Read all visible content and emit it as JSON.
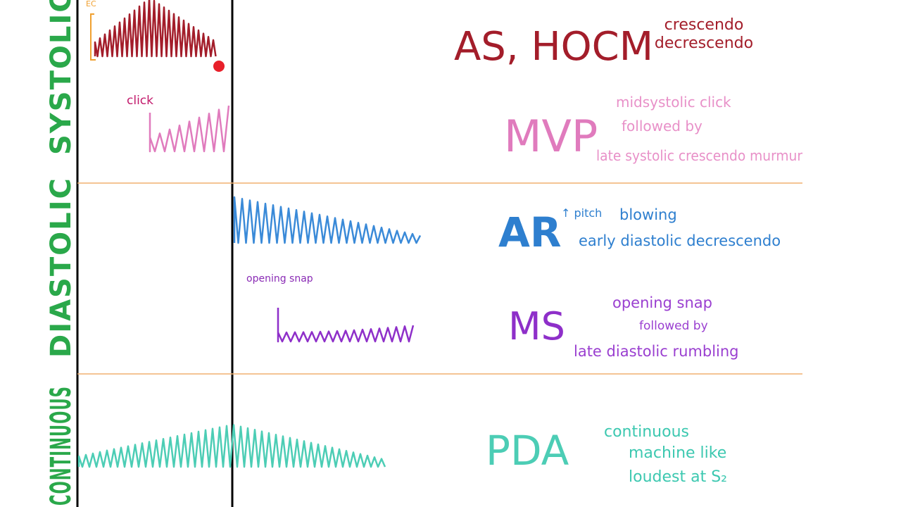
{
  "sections": [
    {
      "label": "SYSTOLIC",
      "murmurs": [
        {
          "name": "AS, HOCM",
          "annotation": "EC",
          "description": [
            "crescendo",
            "decrescendo"
          ]
        },
        {
          "name": "MVP",
          "annotation": "click",
          "description": [
            "midsystolic click",
            "followed by",
            "late systolic crescendo murmur"
          ]
        }
      ]
    },
    {
      "label": "DIASTOLIC",
      "murmurs": [
        {
          "name": "AR",
          "annotation": "↑ pitch",
          "description": [
            "blowing",
            "early diastolic decrescendo"
          ]
        },
        {
          "name": "MS",
          "annotation": "opening snap",
          "description": [
            "opening snap",
            "followed by",
            "late diastolic rumbling"
          ]
        }
      ]
    },
    {
      "label": "CONTINUOUS",
      "murmurs": [
        {
          "name": "PDA",
          "description": [
            "continuous",
            "machine like",
            "loudest at S₂"
          ]
        }
      ]
    }
  ]
}
